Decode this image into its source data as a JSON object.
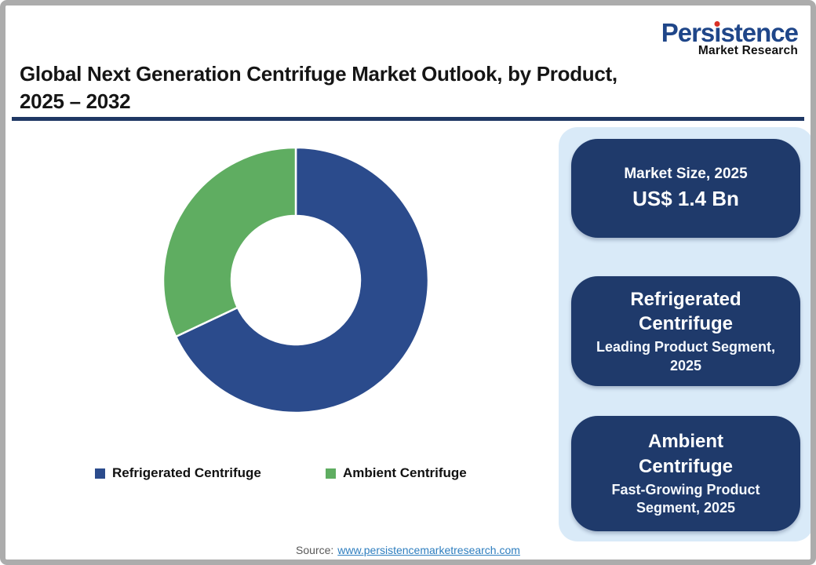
{
  "theme": {
    "accent_navy": "#1F3864",
    "card_navy": "#1F3A6B",
    "panel_blue": "#D9EAF8",
    "link_blue": "#2E7EBF",
    "brand_blue": "#1F4689",
    "dot_red": "#D93025",
    "source_gray": "#595959",
    "frame_gray": "#ACACAC"
  },
  "logo": {
    "name": "Persistence",
    "subtitle": "Market Research"
  },
  "header": {
    "title_line1": "Global Next Generation Centrifuge Market Outlook, by Product,",
    "title_line2": "2025 – 2032"
  },
  "chart_data": {
    "type": "pie",
    "subtype": "donut",
    "title": "Global Next Generation Centrifuge Market Outlook, by Product, 2025 – 2032",
    "categories": [
      "Refrigerated Centrifuge",
      "Ambient Centrifuge"
    ],
    "values": [
      68,
      32
    ],
    "values_estimated_from_angles": true,
    "colors": [
      "#2B4B8C",
      "#5FAD61"
    ],
    "start_angle_deg": 0,
    "direction": "clockwise",
    "inner_radius_ratio": 0.485,
    "segment_separator_color": "#FFFFFF",
    "legend_position": "bottom"
  },
  "sidebar": {
    "cards": [
      {
        "line1": "Market Size, 2025",
        "line2": "US$ 1.4 Bn"
      },
      {
        "title": "Refrigerated Centrifuge",
        "subtitle": "Leading Product Segment, 2025"
      },
      {
        "title": "Ambient Centrifuge",
        "subtitle": "Fast-Growing Product Segment, 2025"
      }
    ]
  },
  "footer": {
    "source_label": "Source:",
    "source_link": "www.persistencemarketresearch.com"
  }
}
